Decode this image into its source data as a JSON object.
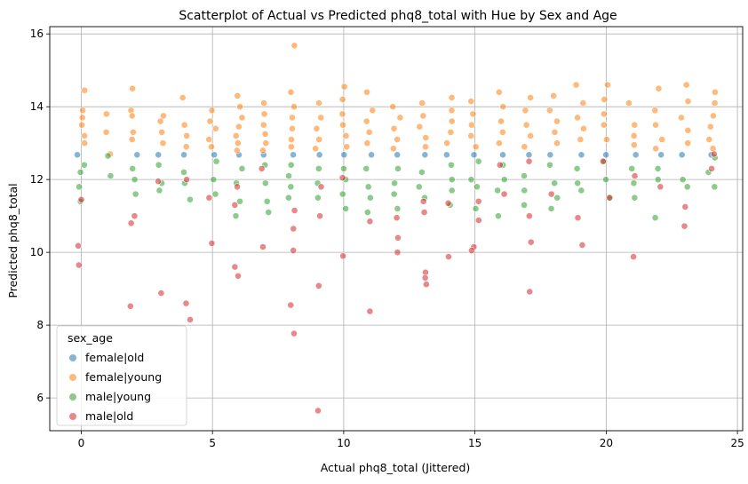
{
  "chart_data": {
    "type": "scatter",
    "title": "Scatterplot of Actual vs Predicted phq8_total with Hue by Sex and Age",
    "xlabel": "Actual phq8_total (Jittered)",
    "ylabel": "Predicted phq8_total",
    "xlim": [
      -1.2,
      25.2
    ],
    "ylim": [
      5.1,
      16.2
    ],
    "xticks": [
      0,
      5,
      10,
      15,
      20,
      25
    ],
    "yticks": [
      6,
      8,
      10,
      12,
      14,
      16
    ],
    "grid": true,
    "legend": {
      "title": "sex_age",
      "placement": "bottom-left"
    },
    "series": [
      {
        "name": "female|old",
        "color": "#1f77b4",
        "points": [
          [
            0.0,
            12.68
          ],
          [
            2.0,
            12.68
          ],
          [
            3.0,
            12.68
          ],
          [
            4.0,
            12.68
          ],
          [
            5.0,
            12.68
          ],
          [
            6.0,
            12.68
          ],
          [
            7.0,
            12.68
          ],
          [
            8.0,
            12.68
          ],
          [
            9.0,
            12.68
          ],
          [
            10.0,
            12.68
          ],
          [
            11.0,
            12.68
          ],
          [
            12.0,
            12.68
          ],
          [
            13.0,
            12.68
          ],
          [
            14.0,
            12.68
          ],
          [
            15.0,
            12.68
          ],
          [
            16.0,
            12.68
          ],
          [
            17.0,
            12.68
          ],
          [
            18.0,
            12.68
          ],
          [
            19.0,
            12.68
          ],
          [
            20.0,
            12.68
          ],
          [
            21.0,
            12.68
          ],
          [
            22.0,
            12.68
          ],
          [
            23.0,
            12.68
          ],
          [
            24.0,
            12.68
          ]
        ]
      },
      {
        "name": "female|young",
        "color": "#ff7f0e",
        "points": [
          [
            0.0,
            14.45
          ],
          [
            0.0,
            13.9
          ],
          [
            0.0,
            13.7
          ],
          [
            0.0,
            13.5
          ],
          [
            0.0,
            13.2
          ],
          [
            0.0,
            13.0
          ],
          [
            1.0,
            13.8
          ],
          [
            1.0,
            13.3
          ],
          [
            1.0,
            12.7
          ],
          [
            2.0,
            14.5
          ],
          [
            2.0,
            13.9
          ],
          [
            2.0,
            13.75
          ],
          [
            2.0,
            13.3
          ],
          [
            2.0,
            13.1
          ],
          [
            3.0,
            13.75
          ],
          [
            3.0,
            13.6
          ],
          [
            3.0,
            13.3
          ],
          [
            3.0,
            13.0
          ],
          [
            4.0,
            14.25
          ],
          [
            4.0,
            13.5
          ],
          [
            4.0,
            13.2
          ],
          [
            4.0,
            12.9
          ],
          [
            5.0,
            13.9
          ],
          [
            5.0,
            13.6
          ],
          [
            5.0,
            13.4
          ],
          [
            5.0,
            13.1
          ],
          [
            5.0,
            12.9
          ],
          [
            6.0,
            14.3
          ],
          [
            6.0,
            14.0
          ],
          [
            6.0,
            13.7
          ],
          [
            6.0,
            13.45
          ],
          [
            6.0,
            13.2
          ],
          [
            6.0,
            13.0
          ],
          [
            6.0,
            12.8
          ],
          [
            7.0,
            14.1
          ],
          [
            7.0,
            13.8
          ],
          [
            7.0,
            13.5
          ],
          [
            7.0,
            13.25
          ],
          [
            7.0,
            13.0
          ],
          [
            7.0,
            12.8
          ],
          [
            8.0,
            15.68
          ],
          [
            8.0,
            14.4
          ],
          [
            8.0,
            14.0
          ],
          [
            8.0,
            13.7
          ],
          [
            8.0,
            13.4
          ],
          [
            8.0,
            13.1
          ],
          [
            8.0,
            12.9
          ],
          [
            9.0,
            14.1
          ],
          [
            9.0,
            13.7
          ],
          [
            9.0,
            13.4
          ],
          [
            9.0,
            13.1
          ],
          [
            9.0,
            12.85
          ],
          [
            10.0,
            14.55
          ],
          [
            10.0,
            14.2
          ],
          [
            10.0,
            13.8
          ],
          [
            10.0,
            13.5
          ],
          [
            10.0,
            13.2
          ],
          [
            10.0,
            12.9
          ],
          [
            11.0,
            14.4
          ],
          [
            11.0,
            13.9
          ],
          [
            11.0,
            13.6
          ],
          [
            11.0,
            13.3
          ],
          [
            11.0,
            13.0
          ],
          [
            12.0,
            14.0
          ],
          [
            12.0,
            13.7
          ],
          [
            12.0,
            13.4
          ],
          [
            12.0,
            13.1
          ],
          [
            12.0,
            12.85
          ],
          [
            13.0,
            14.1
          ],
          [
            13.0,
            13.75
          ],
          [
            13.0,
            13.45
          ],
          [
            13.0,
            13.15
          ],
          [
            13.0,
            12.9
          ],
          [
            14.0,
            14.25
          ],
          [
            14.0,
            13.9
          ],
          [
            14.0,
            13.6
          ],
          [
            14.0,
            13.3
          ],
          [
            14.0,
            13.0
          ],
          [
            15.0,
            14.15
          ],
          [
            15.0,
            13.8
          ],
          [
            15.0,
            13.5
          ],
          [
            15.0,
            13.2
          ],
          [
            15.0,
            12.9
          ],
          [
            16.0,
            14.4
          ],
          [
            16.0,
            14.0
          ],
          [
            16.0,
            13.6
          ],
          [
            16.0,
            13.3
          ],
          [
            16.0,
            13.0
          ],
          [
            17.0,
            14.25
          ],
          [
            17.0,
            13.9
          ],
          [
            17.0,
            13.5
          ],
          [
            17.0,
            13.2
          ],
          [
            17.0,
            12.9
          ],
          [
            18.0,
            14.3
          ],
          [
            18.0,
            13.9
          ],
          [
            18.0,
            13.6
          ],
          [
            18.0,
            13.3
          ],
          [
            18.0,
            13.0
          ],
          [
            19.0,
            14.6
          ],
          [
            19.0,
            14.1
          ],
          [
            19.0,
            13.7
          ],
          [
            19.0,
            13.4
          ],
          [
            19.0,
            13.1
          ],
          [
            20.0,
            14.6
          ],
          [
            20.0,
            14.2
          ],
          [
            20.0,
            13.8
          ],
          [
            20.0,
            13.5
          ],
          [
            20.0,
            13.1
          ],
          [
            21.0,
            14.1
          ],
          [
            21.0,
            13.5
          ],
          [
            21.0,
            13.2
          ],
          [
            21.0,
            12.95
          ],
          [
            22.0,
            14.5
          ],
          [
            22.0,
            13.9
          ],
          [
            22.0,
            13.5
          ],
          [
            22.0,
            13.1
          ],
          [
            22.0,
            12.85
          ],
          [
            23.0,
            14.6
          ],
          [
            23.0,
            14.15
          ],
          [
            23.0,
            13.7
          ],
          [
            23.0,
            13.35
          ],
          [
            23.0,
            13.0
          ],
          [
            24.0,
            14.4
          ],
          [
            24.0,
            14.1
          ],
          [
            24.0,
            13.75
          ],
          [
            24.0,
            13.45
          ],
          [
            24.0,
            13.1
          ],
          [
            24.0,
            12.85
          ]
        ]
      },
      {
        "name": "male|young",
        "color": "#2ca02c",
        "points": [
          [
            0.0,
            12.4
          ],
          [
            0.0,
            12.2
          ],
          [
            0.0,
            11.8
          ],
          [
            0.0,
            11.4
          ],
          [
            1.0,
            12.1
          ],
          [
            1.0,
            12.65
          ],
          [
            2.0,
            12.3
          ],
          [
            2.0,
            12.0
          ],
          [
            2.0,
            11.6
          ],
          [
            3.0,
            12.4
          ],
          [
            3.0,
            11.9
          ],
          [
            3.0,
            11.7
          ],
          [
            4.0,
            12.2
          ],
          [
            4.0,
            11.9
          ],
          [
            4.0,
            11.45
          ],
          [
            5.0,
            12.5
          ],
          [
            5.0,
            12.0
          ],
          [
            5.0,
            11.6
          ],
          [
            6.0,
            12.3
          ],
          [
            6.0,
            11.9
          ],
          [
            6.0,
            11.4
          ],
          [
            6.0,
            11.0
          ],
          [
            7.0,
            12.4
          ],
          [
            7.0,
            11.9
          ],
          [
            7.0,
            11.4
          ],
          [
            7.0,
            11.1
          ],
          [
            8.0,
            12.4
          ],
          [
            8.0,
            12.1
          ],
          [
            8.0,
            11.8
          ],
          [
            8.0,
            11.5
          ],
          [
            9.0,
            12.3
          ],
          [
            9.0,
            11.9
          ],
          [
            9.0,
            11.5
          ],
          [
            10.0,
            12.3
          ],
          [
            10.0,
            12.0
          ],
          [
            10.0,
            11.6
          ],
          [
            10.0,
            11.2
          ],
          [
            11.0,
            12.3
          ],
          [
            11.0,
            11.8
          ],
          [
            11.0,
            11.5
          ],
          [
            11.0,
            11.1
          ],
          [
            12.0,
            12.3
          ],
          [
            12.0,
            11.9
          ],
          [
            12.0,
            11.6
          ],
          [
            12.0,
            11.2
          ],
          [
            13.0,
            12.2
          ],
          [
            13.0,
            11.8
          ],
          [
            13.0,
            11.5
          ],
          [
            14.0,
            12.4
          ],
          [
            14.0,
            12.0
          ],
          [
            14.0,
            11.7
          ],
          [
            14.0,
            11.3
          ],
          [
            15.0,
            12.5
          ],
          [
            15.0,
            12.0
          ],
          [
            15.0,
            11.8
          ],
          [
            15.0,
            11.2
          ],
          [
            16.0,
            12.4
          ],
          [
            16.0,
            12.0
          ],
          [
            16.0,
            11.7
          ],
          [
            16.0,
            11.0
          ],
          [
            17.0,
            12.1
          ],
          [
            17.0,
            11.7
          ],
          [
            17.0,
            11.3
          ],
          [
            18.0,
            12.4
          ],
          [
            18.0,
            11.9
          ],
          [
            18.0,
            11.5
          ],
          [
            18.0,
            11.2
          ],
          [
            19.0,
            12.3
          ],
          [
            19.0,
            11.9
          ],
          [
            19.0,
            11.7
          ],
          [
            20.0,
            12.5
          ],
          [
            20.0,
            12.0
          ],
          [
            20.0,
            11.5
          ],
          [
            21.0,
            12.3
          ],
          [
            21.0,
            11.9
          ],
          [
            21.0,
            11.5
          ],
          [
            22.0,
            12.3
          ],
          [
            22.0,
            12.0
          ],
          [
            22.0,
            10.95
          ],
          [
            23.0,
            12.0
          ],
          [
            23.0,
            11.8
          ],
          [
            24.0,
            12.6
          ],
          [
            24.0,
            12.2
          ],
          [
            24.0,
            11.8
          ]
        ]
      },
      {
        "name": "male|old",
        "color": "#d62728",
        "points": [
          [
            0.0,
            11.45
          ],
          [
            0.0,
            10.18
          ],
          [
            0.0,
            9.65
          ],
          [
            2.0,
            11.0
          ],
          [
            2.0,
            10.8
          ],
          [
            2.0,
            8.52
          ],
          [
            3.0,
            11.95
          ],
          [
            3.0,
            8.88
          ],
          [
            4.0,
            12.0
          ],
          [
            4.0,
            8.6
          ],
          [
            4.0,
            8.15
          ],
          [
            5.0,
            11.5
          ],
          [
            5.0,
            10.25
          ],
          [
            6.0,
            11.8
          ],
          [
            6.0,
            11.3
          ],
          [
            6.0,
            9.6
          ],
          [
            6.0,
            9.35
          ],
          [
            7.0,
            12.3
          ],
          [
            7.0,
            10.15
          ],
          [
            8.0,
            11.15
          ],
          [
            8.0,
            10.65
          ],
          [
            8.0,
            10.05
          ],
          [
            8.0,
            8.55
          ],
          [
            8.0,
            7.77
          ],
          [
            9.0,
            11.8
          ],
          [
            9.0,
            11.0
          ],
          [
            9.0,
            9.08
          ],
          [
            9.0,
            5.65
          ],
          [
            10.0,
            12.05
          ],
          [
            10.0,
            9.9
          ],
          [
            11.0,
            10.85
          ],
          [
            11.0,
            8.38
          ],
          [
            12.0,
            10.95
          ],
          [
            12.0,
            10.4
          ],
          [
            12.0,
            10.0
          ],
          [
            13.0,
            11.4
          ],
          [
            13.0,
            11.1
          ],
          [
            13.0,
            9.45
          ],
          [
            13.0,
            9.3
          ],
          [
            13.0,
            9.12
          ],
          [
            14.0,
            11.35
          ],
          [
            14.0,
            9.88
          ],
          [
            15.0,
            11.4
          ],
          [
            15.0,
            10.88
          ],
          [
            15.0,
            10.15
          ],
          [
            15.0,
            10.05
          ],
          [
            16.0,
            12.4
          ],
          [
            16.0,
            11.6
          ],
          [
            17.0,
            12.5
          ],
          [
            17.0,
            11.0
          ],
          [
            17.0,
            10.28
          ],
          [
            17.0,
            8.92
          ],
          [
            18.0,
            11.6
          ],
          [
            19.0,
            10.95
          ],
          [
            19.0,
            10.2
          ],
          [
            20.0,
            12.5
          ],
          [
            20.0,
            11.5
          ],
          [
            21.0,
            12.1
          ],
          [
            21.0,
            9.88
          ],
          [
            22.0,
            11.8
          ],
          [
            23.0,
            11.25
          ],
          [
            23.0,
            10.72
          ],
          [
            24.0,
            12.7
          ],
          [
            24.0,
            12.3
          ]
        ]
      }
    ]
  }
}
